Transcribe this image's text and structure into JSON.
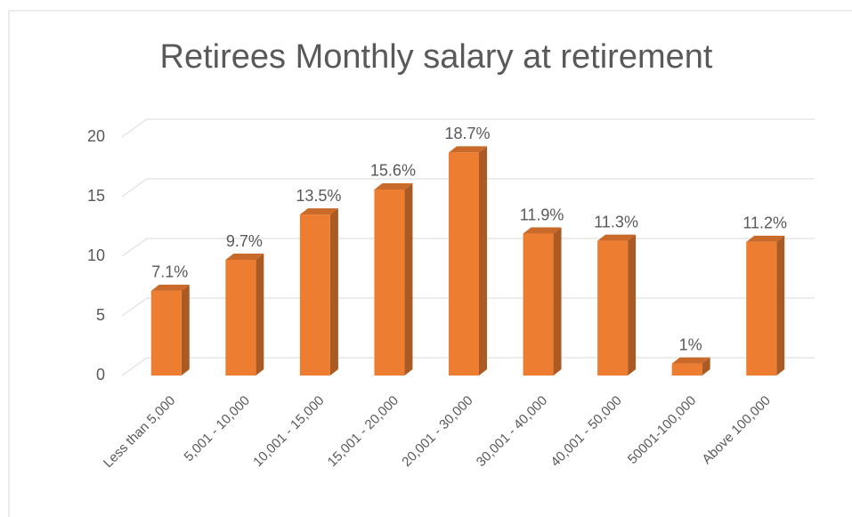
{
  "chart_data": {
    "type": "bar3d",
    "title": "Retirees Monthly salary at retirement",
    "categories": [
      "Less than 5,000",
      "5,001 - 10,000",
      "10,001 - 15,000",
      "15,001 - 20,000",
      "20,001 - 30,000",
      "30,001 - 40,000",
      "40,001 - 50,000",
      "50001-100,000",
      "Above 100,000"
    ],
    "values": [
      7.1,
      9.7,
      13.5,
      15.6,
      18.7,
      11.9,
      11.3,
      1,
      11.2
    ],
    "value_labels": [
      "7.1%",
      "9.7%",
      "13.5%",
      "15.6%",
      "18.7%",
      "11.9%",
      "11.3%",
      "1%",
      "11.2%"
    ],
    "color": "#ed7d31",
    "ylim": [
      0,
      20
    ],
    "yticks": [
      0,
      5,
      10,
      15,
      20
    ],
    "grid": true
  }
}
